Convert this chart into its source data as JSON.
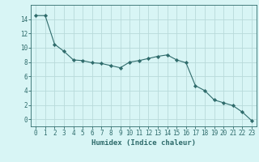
{
  "xlabel": "Humidex (Indice chaleur)",
  "ylabel": "",
  "x": [
    0,
    1,
    2,
    3,
    4,
    5,
    6,
    7,
    8,
    9,
    10,
    11,
    12,
    13,
    14,
    15,
    16,
    17,
    18,
    19,
    20,
    21,
    22,
    23
  ],
  "y": [
    14.5,
    14.5,
    10.5,
    9.5,
    8.3,
    8.2,
    7.9,
    7.8,
    7.5,
    7.2,
    8.0,
    8.2,
    8.5,
    8.8,
    9.0,
    8.3,
    7.9,
    4.7,
    4.0,
    2.7,
    2.3,
    1.9,
    1.0,
    -0.2
  ],
  "line_color": "#2e6b6b",
  "marker": "D",
  "marker_size": 2.2,
  "bg_color": "#d8f5f5",
  "grid_color": "#b8dada",
  "xlim": [
    -0.5,
    23.5
  ],
  "ylim": [
    -1,
    16
  ],
  "yticks": [
    0,
    2,
    4,
    6,
    8,
    10,
    12,
    14
  ],
  "xticks": [
    0,
    1,
    2,
    3,
    4,
    5,
    6,
    7,
    8,
    9,
    10,
    11,
    12,
    13,
    14,
    15,
    16,
    17,
    18,
    19,
    20,
    21,
    22,
    23
  ],
  "tick_color": "#2e6b6b",
  "label_fontsize": 6.5,
  "tick_fontsize": 5.5
}
